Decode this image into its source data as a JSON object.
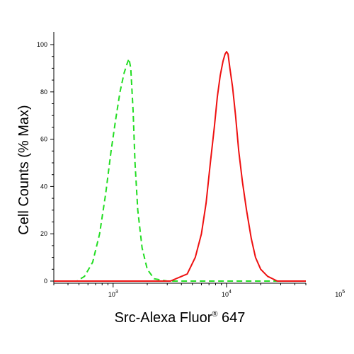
{
  "chart_data": {
    "type": "line",
    "xlabel": {
      "prefix": "Src-Alexa Fluor",
      "sup": "®",
      "suffix": " 647"
    },
    "ylabel": "Cell Counts (% Max)",
    "x_scale": "log",
    "xlim": [
      300,
      50000
    ],
    "ylim": [
      0,
      100
    ],
    "y_ticks": [
      0,
      20,
      40,
      60,
      80,
      100
    ],
    "x_ticks": [
      {
        "value": 1000,
        "base": "10",
        "exp": "3"
      },
      {
        "value": 10000,
        "base": "10",
        "exp": "4"
      },
      {
        "value": 100000,
        "base": "10",
        "exp": "5"
      }
    ],
    "grid": false,
    "legend": "none",
    "series": [
      {
        "style": "dashed",
        "color": "#22dd22",
        "x": [
          300,
          480,
          560,
          660,
          760,
          860,
          960,
          1050,
          1150,
          1250,
          1330,
          1380,
          1430,
          1500,
          1560,
          1650,
          1800,
          2000,
          2300,
          3000,
          5000,
          50000
        ],
        "y": [
          0,
          0,
          2,
          8,
          20,
          37,
          55,
          68,
          80,
          88,
          92,
          94,
          90,
          72,
          50,
          30,
          14,
          5,
          1,
          0,
          0,
          0
        ]
      },
      {
        "style": "solid",
        "color": "#ee1111",
        "x": [
          300,
          3200,
          4500,
          5300,
          6000,
          6600,
          7200,
          7800,
          8300,
          8800,
          9300,
          9700,
          10000,
          10300,
          10700,
          11300,
          12000,
          12800,
          13800,
          15000,
          16500,
          18000,
          20000,
          23000,
          28000,
          50000
        ],
        "y": [
          0,
          0,
          3,
          10,
          20,
          33,
          50,
          65,
          78,
          87,
          93,
          96,
          97,
          96,
          90,
          82,
          70,
          55,
          42,
          30,
          18,
          10,
          5,
          2,
          0,
          0
        ]
      }
    ]
  }
}
